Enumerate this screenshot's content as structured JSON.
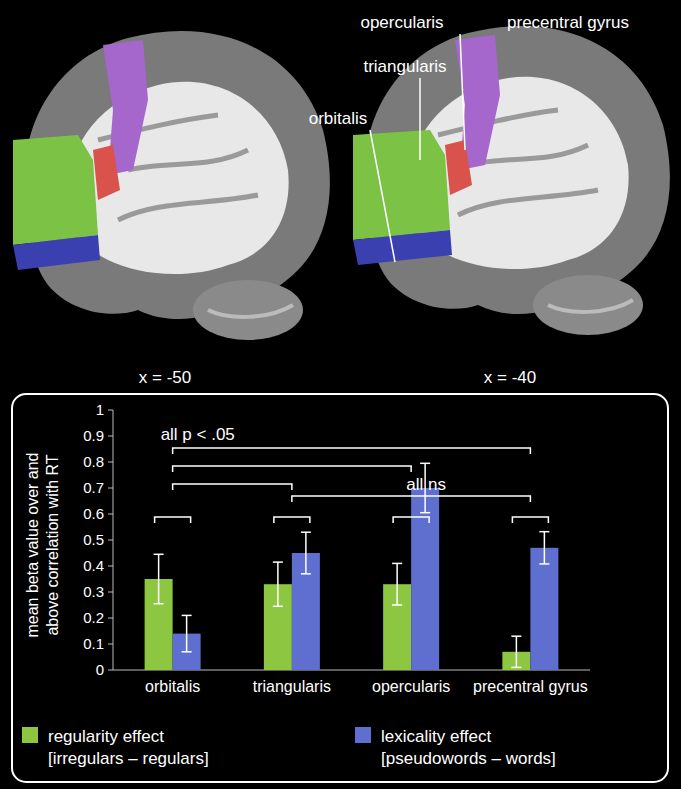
{
  "chart_data": {
    "type": "bar",
    "y_label": "mean beta value over and above correlation with RT",
    "categories": [
      "orbitalis",
      "triangularis",
      "opercularis",
      "precentral gyrus"
    ],
    "series": [
      {
        "name": "regularity effect [irregulars – regulars]",
        "color": "#8dc641",
        "values": [
          0.35,
          0.33,
          0.33,
          0.07
        ],
        "errors": [
          0.095,
          0.085,
          0.08,
          0.06
        ]
      },
      {
        "name": "lexicality effect [pseudowords – words]",
        "color": "#5f6fd0",
        "values": [
          0.14,
          0.45,
          0.7,
          0.47
        ],
        "errors": [
          0.07,
          0.08,
          0.095,
          0.062
        ]
      }
    ],
    "ylim": [
      0,
      1
    ],
    "yticks": [
      0,
      0.1,
      0.2,
      0.3,
      0.4,
      0.5,
      0.6,
      0.7,
      0.8,
      0.9,
      1
    ],
    "grid": false,
    "legend": "bottom",
    "annotations": [
      {
        "text": "all p < .05"
      },
      {
        "text": "all ns"
      }
    ]
  },
  "brain_panels": [
    {
      "label": "x = -50"
    },
    {
      "label": "x = -40",
      "regions": [
        {
          "name": "opercularis",
          "color": "#d9534c"
        },
        {
          "name": "precentral gyrus",
          "color": "#a567cc"
        },
        {
          "name": "triangularis",
          "color": "#7cc244"
        },
        {
          "name": "orbitalis",
          "color": "#3b40b0"
        }
      ]
    }
  ]
}
